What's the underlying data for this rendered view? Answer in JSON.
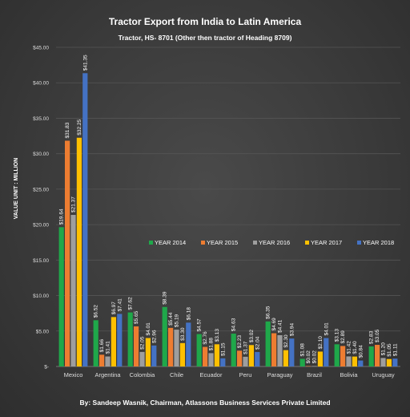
{
  "chart_data": {
    "type": "bar",
    "title": "Tractor Export from India to Latin America",
    "subtitle": "Tractor, HS- 8701 (Other then tractor of Heading 8709)",
    "ylabel": "VALUE UNIT : MILLION",
    "xlabel": "",
    "footer": "By: Sandeep Wasnik, Chairman, Atlassons Business Services Private Limited",
    "ylim": [
      0,
      45
    ],
    "yticks": [
      {
        "value": 0,
        "label": "$-"
      },
      {
        "value": 5,
        "label": "$5.00"
      },
      {
        "value": 10,
        "label": "$10.00"
      },
      {
        "value": 15,
        "label": "$15.00"
      },
      {
        "value": 20,
        "label": "$20.00"
      },
      {
        "value": 25,
        "label": "$25.00"
      },
      {
        "value": 30,
        "label": "$30.00"
      },
      {
        "value": 35,
        "label": "$35.00"
      },
      {
        "value": 40,
        "label": "$40.00"
      },
      {
        "value": 45,
        "label": "$45.00"
      }
    ],
    "grid": true,
    "legend_position": "center-right",
    "categories": [
      "Mexico",
      "Argentina",
      "Colombia",
      "Chile",
      "Ecuador",
      "Peru",
      "Paraguay",
      "Brazil",
      "Bolivia",
      "Uruguay"
    ],
    "series": [
      {
        "name": "YEAR 2014",
        "color": "#1fa84a",
        "values": [
          19.64,
          6.52,
          7.62,
          8.39,
          4.57,
          4.63,
          6.35,
          1.08,
          3.13,
          2.83
        ],
        "labels": [
          "$19.64",
          "$6.52",
          "$7.62",
          "$8.39",
          "$4.57",
          "$4.63",
          "$6.35",
          "$1.08",
          "$3.13",
          "$2.83"
        ]
      },
      {
        "name": "YEAR 2015",
        "color": "#ed7d31",
        "values": [
          31.83,
          1.66,
          5.65,
          5.44,
          2.76,
          2.23,
          4.69,
          0.02,
          2.89,
          3.05
        ],
        "labels": [
          "$31.83",
          "$1.66",
          "$5.65",
          "$5.44",
          "$2.76",
          "$2.23",
          "$4.69",
          "$0.02",
          "$2.89",
          "$3.05"
        ]
      },
      {
        "name": "YEAR 2016",
        "color": "#9e9e9e",
        "values": [
          21.37,
          1.41,
          2.05,
          5.19,
          1.88,
          1.37,
          4.41,
          0.02,
          1.42,
          1.2
        ],
        "labels": [
          "$21.37",
          "$1.41",
          "$2.05",
          "$5.19",
          "$1.88",
          "$1.37",
          "$4.41",
          "$0.02",
          "$1.42",
          "$1.20"
        ]
      },
      {
        "name": "YEAR 2017",
        "color": "#ffc000",
        "values": [
          32.25,
          6.97,
          4.01,
          3.3,
          3.13,
          3.02,
          2.3,
          2.1,
          1.4,
          1.05
        ],
        "labels": [
          "$32.25",
          "$6.97",
          "$4.01",
          "$3.30",
          "$3.13",
          "$3.02",
          "$2.30",
          "$2.10",
          "$1.40",
          "$1.05"
        ]
      },
      {
        "name": "YEAR 2018",
        "color": "#4472c4",
        "values": [
          41.35,
          7.41,
          2.96,
          6.18,
          1.15,
          2.04,
          3.94,
          4.01,
          0.84,
          1.11
        ],
        "labels": [
          "$41.35",
          "$7.41",
          "$2.96",
          "$6.18",
          "$1.15",
          "$2.04",
          "$3.94",
          "$4.01",
          "$0.84",
          "$1.11"
        ]
      }
    ]
  }
}
